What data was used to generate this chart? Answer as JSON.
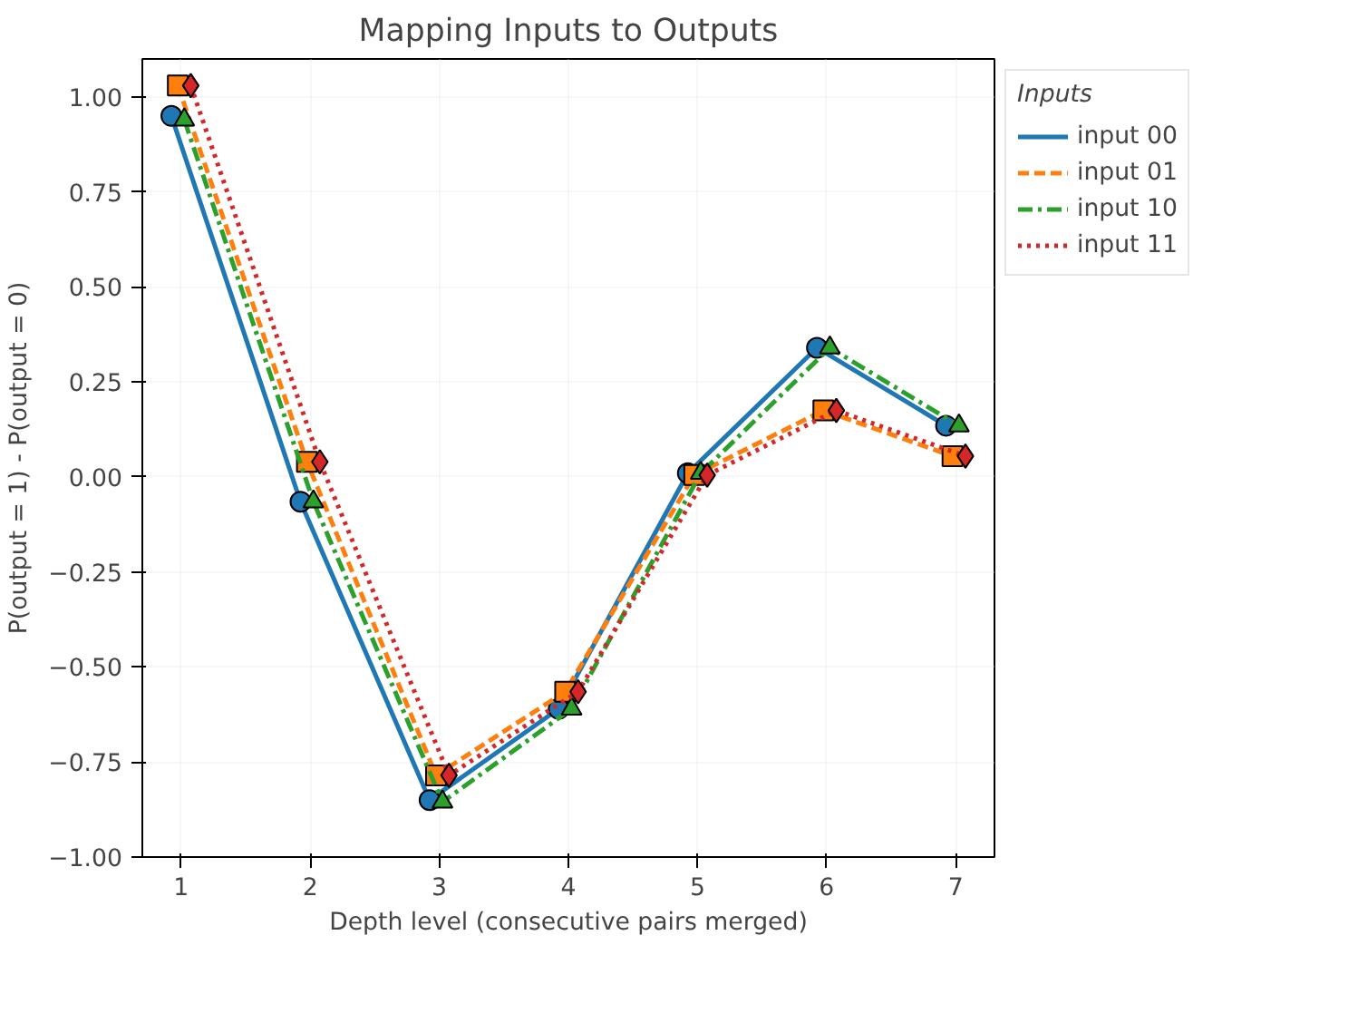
{
  "chart_data": {
    "type": "line",
    "title": "Mapping Inputs to Outputs",
    "xlabel": "Depth level (consecutive pairs merged)",
    "ylabel": "P(output = 1) - P(output = 0)",
    "legend_title": "Inputs",
    "legend": "right",
    "grid": true,
    "xlim": [
      0.7,
      7.3
    ],
    "xticks": [
      1,
      2,
      3,
      4,
      5,
      6,
      7
    ],
    "ylim": [
      -1.0,
      1.1
    ],
    "yticks": [
      {
        "value": -1.0,
        "label": "−1.00"
      },
      {
        "value": -0.75,
        "label": "−0.75"
      },
      {
        "value": -0.5,
        "label": "−0.50"
      },
      {
        "value": -0.25,
        "label": "−0.25"
      },
      {
        "value": 0,
        "label": "0.00"
      },
      {
        "value": 0.25,
        "label": "0.25"
      },
      {
        "value": 0.5,
        "label": "0.50"
      },
      {
        "value": 0.75,
        "label": "0.75"
      },
      {
        "value": 1.0,
        "label": "1.00"
      }
    ],
    "series": [
      {
        "name": "input 00",
        "color": "#1f77b4",
        "marker": "circle",
        "line_style": "solid",
        "x": [
          0.925,
          1.925,
          2.925,
          3.925,
          4.925,
          5.925,
          6.925
        ],
        "values": [
          0.95,
          -0.065,
          -0.85,
          -0.61,
          0.01,
          0.34,
          0.135
        ]
      },
      {
        "name": "input 01",
        "color": "#ff7f0e",
        "marker": "square",
        "line_style": "dashed",
        "x": [
          0.975,
          1.975,
          2.975,
          3.975,
          4.975,
          5.975,
          6.975
        ],
        "values": [
          1.03,
          0.04,
          -0.785,
          -0.565,
          0.005,
          0.175,
          0.055
        ]
      },
      {
        "name": "input 10",
        "color": "#2ca02c",
        "marker": "triangle",
        "line_style": "dashdot",
        "x": [
          1.025,
          2.025,
          3.025,
          4.025,
          5.025,
          6.025,
          7.025
        ],
        "values": [
          0.94,
          -0.065,
          -0.855,
          -0.61,
          0.01,
          0.34,
          0.135
        ]
      },
      {
        "name": "input 11",
        "color": "#d62728",
        "marker": "diamond",
        "line_style": "dotted",
        "x": [
          1.075,
          2.075,
          3.075,
          4.075,
          5.075,
          6.075,
          7.075
        ],
        "values": [
          1.03,
          0.04,
          -0.785,
          -0.565,
          0.005,
          0.175,
          0.055
        ]
      }
    ]
  }
}
